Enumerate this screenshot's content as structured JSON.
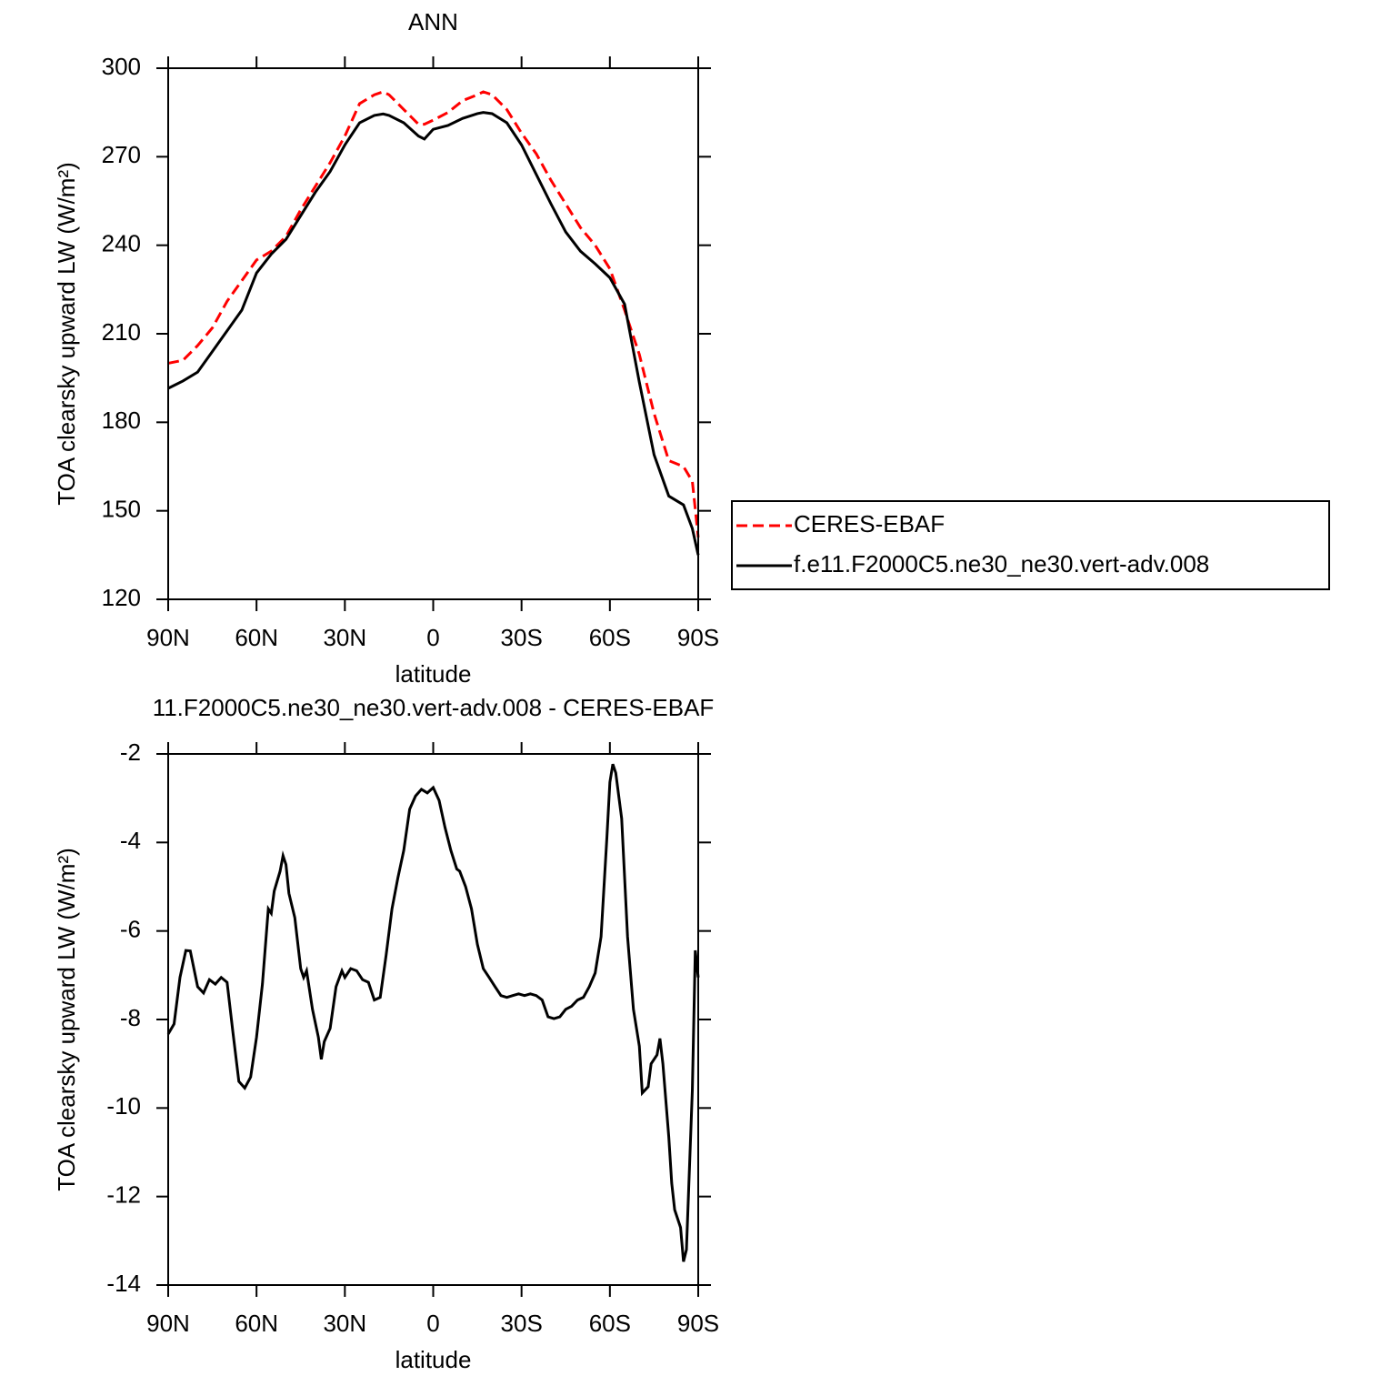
{
  "chart_data": [
    {
      "type": "line",
      "title": "ANN",
      "xlabel": "latitude",
      "ylabel": "TOA clearsky upward LW (W/m²)",
      "x": [
        90,
        85,
        80,
        75,
        70,
        65,
        60,
        55,
        50,
        45,
        40,
        35,
        30,
        25,
        20,
        17,
        15,
        10,
        5,
        3,
        0,
        -5,
        -10,
        -15,
        -17,
        -20,
        -25,
        -30,
        -35,
        -40,
        -45,
        -50,
        -55,
        -60,
        -65,
        -70,
        -75,
        -80,
        -85,
        -88,
        -90
      ],
      "series": [
        {
          "name": "CERES-EBAF",
          "color": "#ff0000",
          "line_style": "dashed",
          "values": [
            200,
            201,
            206,
            212,
            221,
            228,
            235,
            238,
            243,
            252,
            260,
            268,
            277,
            288,
            291,
            292,
            291,
            286,
            281,
            281,
            282.4,
            285,
            289,
            291,
            292,
            291,
            286,
            278,
            271,
            262,
            254,
            246,
            240,
            232,
            218,
            203,
            183,
            167,
            165,
            160,
            141
          ]
        },
        {
          "name": "f.e11.F2000C5.ne30_ne30.vert-adv.008",
          "color": "#000000",
          "line_style": "solid",
          "values": [
            191.5,
            194,
            197,
            204,
            211,
            218,
            230.6,
            237,
            242,
            250,
            258,
            265,
            274,
            281.5,
            284,
            284.5,
            284,
            281.5,
            277,
            276,
            279.3,
            280.6,
            283,
            284.6,
            285,
            284.6,
            281.5,
            274,
            264,
            254,
            244.5,
            238,
            233.7,
            229,
            220,
            193.6,
            169,
            155,
            152,
            144,
            135
          ]
        }
      ],
      "xlim": [
        90,
        -90
      ],
      "xticks": [
        {
          "value": 90,
          "label": "90N"
        },
        {
          "value": 60,
          "label": "60N"
        },
        {
          "value": 30,
          "label": "30N"
        },
        0,
        {
          "value": -30,
          "label": "30S"
        },
        {
          "value": -60,
          "label": "60S"
        },
        {
          "value": -90,
          "label": "90S"
        }
      ],
      "ylim": [
        120,
        300
      ],
      "yticks": [
        120,
        150,
        180,
        210,
        240,
        270,
        300
      ],
      "legend": "right"
    },
    {
      "type": "line",
      "title": "11.F2000C5.ne30_ne30.vert-adv.008 - CERES-EBAF",
      "xlabel": "latitude",
      "ylabel": "TOA clearsky upward LW (W/m²)",
      "x": [
        90,
        88,
        86,
        84,
        82.5,
        80,
        78,
        76,
        74,
        72,
        70,
        68,
        66,
        64,
        62,
        60,
        58,
        56,
        55,
        54,
        52,
        51,
        50,
        49,
        47,
        45,
        44,
        43,
        41,
        39,
        38,
        37,
        35,
        33,
        31,
        30,
        28,
        26,
        24,
        22,
        20,
        18,
        16,
        14,
        12,
        10,
        8,
        6,
        4,
        2,
        0,
        -2,
        -4,
        -6,
        -8,
        -9,
        -11,
        -13,
        -15,
        -17,
        -19,
        -21,
        -23,
        -25,
        -27,
        -29,
        -31,
        -33,
        -35,
        -37,
        -39,
        -41,
        -43,
        -45,
        -47,
        -49,
        -51,
        -53,
        -55,
        -57,
        -59,
        -60,
        -61,
        -62,
        -64,
        -66,
        -68,
        -70,
        -71,
        -73,
        -74,
        -76,
        -77,
        -78,
        -80,
        -81,
        -82,
        -83,
        -84,
        -85,
        -86,
        -88,
        -89,
        -90
      ],
      "series": [
        {
          "color": "#000000",
          "line_style": "solid",
          "values": [
            -8.33,
            -8.1,
            -7.05,
            -6.44,
            -6.45,
            -7.26,
            -7.4,
            -7.1,
            -7.2,
            -7.05,
            -7.16,
            -8.3,
            -9.4,
            -9.55,
            -9.3,
            -8.4,
            -7.2,
            -5.5,
            -5.6,
            -5.1,
            -4.65,
            -4.3,
            -4.5,
            -5.15,
            -5.7,
            -6.85,
            -7.05,
            -6.9,
            -7.77,
            -8.4,
            -8.9,
            -8.5,
            -8.2,
            -7.26,
            -6.9,
            -7.05,
            -6.85,
            -6.9,
            -7.1,
            -7.16,
            -7.56,
            -7.5,
            -6.55,
            -5.5,
            -4.8,
            -4.18,
            -3.25,
            -2.95,
            -2.8,
            -2.88,
            -2.76,
            -3.05,
            -3.66,
            -4.18,
            -4.6,
            -4.65,
            -5.0,
            -5.5,
            -6.3,
            -6.85,
            -7.05,
            -7.26,
            -7.46,
            -7.5,
            -7.46,
            -7.42,
            -7.46,
            -7.42,
            -7.46,
            -7.56,
            -7.94,
            -7.98,
            -7.94,
            -7.77,
            -7.7,
            -7.56,
            -7.5,
            -7.26,
            -6.95,
            -6.13,
            -3.87,
            -2.64,
            -2.23,
            -2.43,
            -3.46,
            -6.13,
            -7.77,
            -8.6,
            -9.66,
            -9.52,
            -9.0,
            -8.8,
            -8.43,
            -9.0,
            -10.65,
            -11.7,
            -12.3,
            -12.5,
            -12.7,
            -13.47,
            -13.2,
            -9.6,
            -6.44,
            -7.05
          ]
        }
      ],
      "xlim": [
        90,
        -90
      ],
      "xticks": [
        {
          "value": 90,
          "label": "90N"
        },
        {
          "value": 60,
          "label": "60N"
        },
        {
          "value": 30,
          "label": "30N"
        },
        0,
        {
          "value": -30,
          "label": "30S"
        },
        {
          "value": -60,
          "label": "60S"
        },
        {
          "value": -90,
          "label": "90S"
        }
      ],
      "ylim": [
        -14,
        -2
      ],
      "yticks": [
        -14,
        -12,
        -10,
        -8,
        -6,
        -4,
        -2
      ]
    }
  ]
}
